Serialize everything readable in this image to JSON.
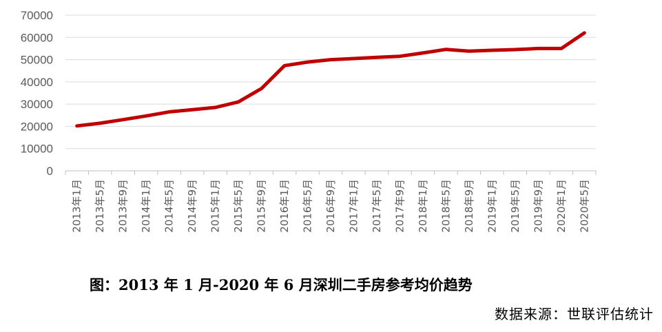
{
  "caption": "图：2013 年 1 月-2020 年 6 月深圳二手房参考均价趋势",
  "source": "数据来源：世联评估统计",
  "chart_data": {
    "type": "line",
    "categories": [
      "2013年1月",
      "2013年5月",
      "2013年9月",
      "2014年1月",
      "2014年5月",
      "2014年9月",
      "2015年1月",
      "2015年5月",
      "2015年9月",
      "2016年1月",
      "2016年5月",
      "2016年9月",
      "2017年1月",
      "2017年5月",
      "2017年9月",
      "2018年1月",
      "2018年5月",
      "2018年9月",
      "2019年1月",
      "2019年5月",
      "2019年9月",
      "2020年1月",
      "2020年5月"
    ],
    "values": [
      20200,
      21400,
      23000,
      24700,
      26500,
      27500,
      28500,
      31000,
      37000,
      47300,
      48900,
      50000,
      50500,
      51000,
      51500,
      53000,
      54600,
      53800,
      54200,
      54500,
      55000,
      55000,
      62000
    ],
    "yticks": [
      0,
      10000,
      20000,
      30000,
      40000,
      50000,
      60000,
      70000
    ],
    "ylim": [
      0,
      70000
    ],
    "grid": true,
    "color": "#c00000"
  }
}
